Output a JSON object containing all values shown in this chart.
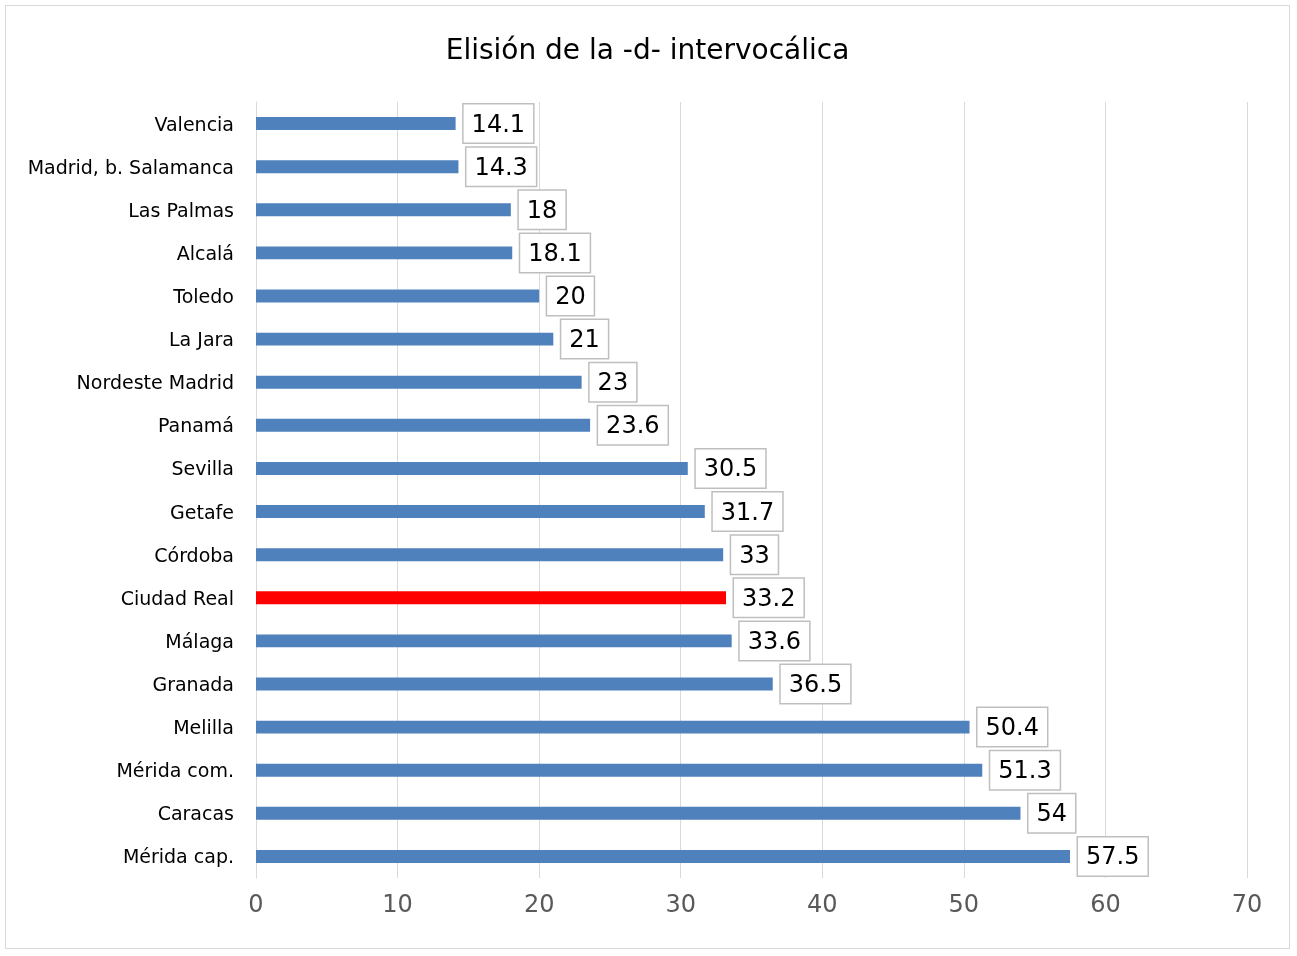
{
  "chart_data": {
    "type": "bar",
    "orientation": "horizontal",
    "title": "Elisión de la -d- intervocálica",
    "categories": [
      "Valencia",
      "Madrid, b. Salamanca",
      "Las Palmas",
      "Alcalá",
      "Toledo",
      "La Jara",
      "Nordeste Madrid",
      "Panamá",
      "Sevilla",
      "Getafe",
      "Córdoba",
      "Ciudad Real",
      "Málaga",
      "Granada",
      "Melilla",
      "Mérida com.",
      "Caracas",
      "Mérida cap."
    ],
    "values": [
      14.1,
      14.3,
      18,
      18.1,
      20,
      21,
      23,
      23.6,
      30.5,
      31.7,
      33,
      33.2,
      33.6,
      36.5,
      50.4,
      51.3,
      54,
      57.5
    ],
    "colors": [
      "#4f81bd",
      "#4f81bd",
      "#4f81bd",
      "#4f81bd",
      "#4f81bd",
      "#4f81bd",
      "#4f81bd",
      "#4f81bd",
      "#4f81bd",
      "#4f81bd",
      "#4f81bd",
      "#ff0000",
      "#4f81bd",
      "#4f81bd",
      "#4f81bd",
      "#4f81bd",
      "#4f81bd",
      "#4f81bd"
    ],
    "xlim": [
      0,
      70
    ],
    "xticks": [
      0,
      10,
      20,
      30,
      40,
      50,
      60,
      70
    ],
    "grid": "x",
    "data_labels": true
  }
}
